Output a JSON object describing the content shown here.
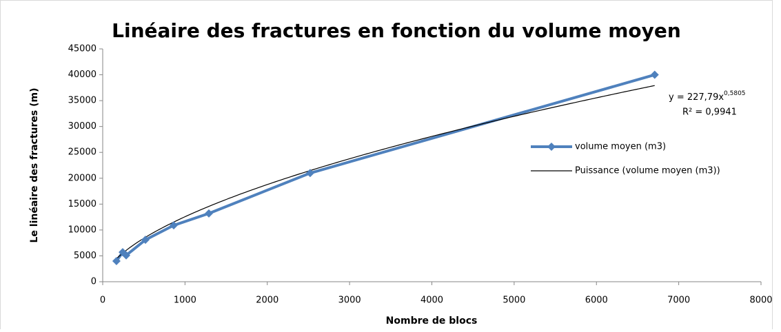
{
  "chart_data": {
    "type": "scatter",
    "title": "Linéaire des fractures en fonction du volume moyen",
    "x_label": "Nombre de blocs",
    "y_label": "Le linéaire des fractures (m)",
    "series": [
      {
        "name": "volume moyen (m3)",
        "color": "#4f81bd",
        "x": [
          167,
          243,
          285,
          519,
          863,
          1290,
          2521,
          6708
        ],
        "values": [
          4000,
          5700,
          5100,
          8100,
          10900,
          13200,
          21000,
          40000
        ]
      }
    ],
    "trendline": {
      "name": "Puissance (volume moyen (m3))",
      "color": "#000000",
      "coefficient": 227.79,
      "exponent": 0.5805,
      "equation": "y = 227,79x",
      "equation_exponent": "0,5805",
      "r_squared": 0.9941,
      "r_squared_label": "R² = 0,9941"
    },
    "xlim": [
      0,
      8000
    ],
    "xticks": [
      0,
      1000,
      2000,
      3000,
      4000,
      5000,
      6000,
      7000,
      8000
    ],
    "ylim": [
      0,
      45000
    ],
    "yticks": [
      0,
      5000,
      10000,
      15000,
      20000,
      25000,
      30000,
      35000,
      40000,
      45000
    ],
    "grid": false,
    "legend": "right"
  }
}
